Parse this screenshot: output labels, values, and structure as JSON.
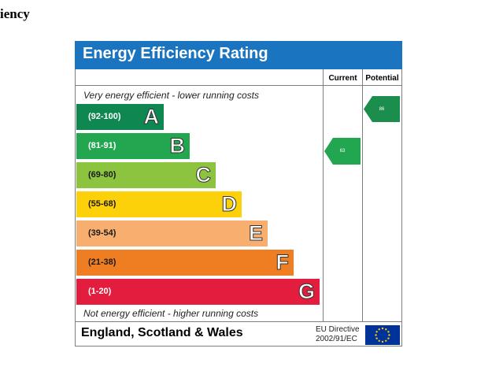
{
  "page": {
    "heading": "iency"
  },
  "epc": {
    "title": "Energy Efficiency Rating",
    "columns": {
      "current": "Current",
      "potential": "Potential"
    },
    "top_note": "Very energy efficient - lower running costs",
    "bottom_note": "Not energy efficient - higher running costs",
    "bands": [
      {
        "range": "(92-100)",
        "letter": "A",
        "color": "#0f8750"
      },
      {
        "range": "(81-91)",
        "letter": "B",
        "color": "#22a650"
      },
      {
        "range": "(69-80)",
        "letter": "C",
        "color": "#8cc43f"
      },
      {
        "range": "(55-68)",
        "letter": "D",
        "color": "#fdd10a"
      },
      {
        "range": "(39-54)",
        "letter": "E",
        "color": "#f7ae6f"
      },
      {
        "range": "(21-38)",
        "letter": "F",
        "color": "#ef7e23"
      },
      {
        "range": "(1-20)",
        "letter": "G",
        "color": "#e31d3d"
      }
    ],
    "current": {
      "value": "63",
      "band": "D",
      "color": "#22a650"
    },
    "potential": {
      "value": "86",
      "band": "B",
      "color": "#1b8e4e"
    },
    "footer": {
      "region": "England, Scotland & Wales",
      "directive_line1": "EU Directive",
      "directive_line2": "2002/91/EC"
    },
    "eu_flag": {
      "icon": "eu-flag-icon",
      "background": "#003399",
      "stars": "#ffcc00"
    }
  }
}
